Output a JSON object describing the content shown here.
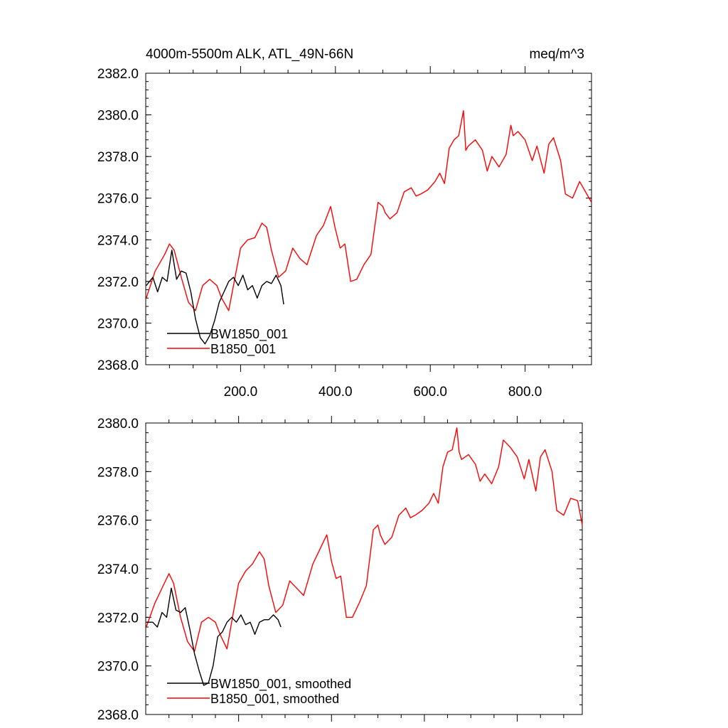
{
  "chart_data": [
    {
      "type": "line",
      "title": "4000m-5500m ALK, ATL_49N-66N",
      "units": "meq/m^3",
      "xlim": [
        0,
        940
      ],
      "ylim": [
        2368,
        2382
      ],
      "xticks": [
        200,
        400,
        600,
        800
      ],
      "xtick_labels": [
        "200.0",
        "400.0",
        "600.0",
        "800.0"
      ],
      "yticks": [
        2368,
        2370,
        2372,
        2374,
        2376,
        2378,
        2380,
        2382
      ],
      "ytick_labels": [
        "2368.0",
        "2370.0",
        "2372.0",
        "2374.0",
        "2376.0",
        "2378.0",
        "2380.0",
        "2382.0"
      ],
      "legend_position": "bottom-left",
      "series": [
        {
          "name": "BW1850_001",
          "color": "#000000",
          "x": [
            1,
            15,
            25,
            35,
            45,
            55,
            65,
            75,
            85,
            95,
            105,
            115,
            125,
            135,
            145,
            155,
            165,
            175,
            185,
            195,
            205,
            215,
            225,
            235,
            245,
            255,
            265,
            275,
            285,
            291
          ],
          "y": [
            2371.8,
            2372.2,
            2371.5,
            2372.2,
            2372.0,
            2373.5,
            2372.1,
            2372.5,
            2372.4,
            2371.5,
            2370.2,
            2369.3,
            2369.0,
            2369.4,
            2370.1,
            2371.0,
            2371.5,
            2372.0,
            2372.2,
            2371.8,
            2372.3,
            2371.6,
            2371.8,
            2371.2,
            2371.8,
            2372.0,
            2371.9,
            2372.3,
            2371.8,
            2370.9
          ]
        },
        {
          "name": "B1850_001",
          "color": "#ff0000",
          "x": [
            1,
            20,
            40,
            50,
            60,
            75,
            90,
            105,
            120,
            135,
            150,
            160,
            175,
            185,
            200,
            215,
            230,
            245,
            255,
            265,
            280,
            295,
            310,
            325,
            340,
            360,
            375,
            390,
            400,
            410,
            420,
            432,
            445,
            460,
            475,
            490,
            500,
            505,
            515,
            530,
            545,
            560,
            570,
            580,
            595,
            610,
            620,
            630,
            640,
            650,
            660,
            670,
            675,
            680,
            695,
            710,
            720,
            730,
            745,
            760,
            770,
            775,
            785,
            800,
            815,
            825,
            840,
            850,
            860,
            875,
            885,
            900,
            915,
            930,
            940
          ],
          "y": [
            2371.2,
            2372.5,
            2373.3,
            2373.8,
            2373.5,
            2372.2,
            2371.0,
            2370.6,
            2371.8,
            2372.1,
            2371.8,
            2371.2,
            2370.6,
            2371.8,
            2373.6,
            2374.0,
            2374.1,
            2374.8,
            2374.6,
            2373.5,
            2372.2,
            2372.5,
            2373.6,
            2373.1,
            2372.8,
            2374.2,
            2374.7,
            2375.6,
            2374.5,
            2373.6,
            2373.8,
            2372.0,
            2372.1,
            2372.8,
            2373.3,
            2375.8,
            2375.6,
            2375.3,
            2375.0,
            2375.3,
            2376.3,
            2376.5,
            2376.1,
            2376.2,
            2376.4,
            2376.8,
            2377.2,
            2376.7,
            2378.4,
            2378.8,
            2379.0,
            2380.2,
            2378.3,
            2378.5,
            2378.8,
            2378.3,
            2377.3,
            2378.0,
            2377.5,
            2378.1,
            2379.5,
            2379.0,
            2379.2,
            2378.8,
            2377.8,
            2378.5,
            2377.2,
            2378.6,
            2378.9,
            2377.8,
            2376.2,
            2376.0,
            2376.8,
            2376.2,
            2375.8
          ]
        }
      ]
    },
    {
      "type": "line",
      "xlim": [
        0,
        940
      ],
      "ylim": [
        2368,
        2380
      ],
      "yticks": [
        2368,
        2370,
        2372,
        2374,
        2376,
        2378,
        2380
      ],
      "ytick_labels": [
        "2368.0",
        "2370.0",
        "2372.0",
        "2374.0",
        "2376.0",
        "2378.0",
        "2380.0"
      ],
      "xticks": [
        200,
        400,
        600,
        800
      ],
      "legend_position": "bottom-left",
      "series": [
        {
          "name": "BW1850_001, smoothed",
          "color": "#000000",
          "x": [
            1,
            15,
            25,
            35,
            45,
            55,
            65,
            75,
            85,
            95,
            105,
            115,
            125,
            135,
            145,
            155,
            165,
            175,
            185,
            195,
            205,
            215,
            225,
            235,
            245,
            255,
            265,
            275,
            285,
            291
          ],
          "y": [
            2371.8,
            2371.8,
            2371.6,
            2372.2,
            2372.0,
            2373.2,
            2372.3,
            2372.2,
            2372.4,
            2371.5,
            2370.5,
            2369.8,
            2369.2,
            2369.3,
            2370.0,
            2371.2,
            2371.4,
            2371.8,
            2372.0,
            2371.8,
            2372.1,
            2371.7,
            2371.8,
            2371.3,
            2371.8,
            2371.9,
            2371.9,
            2372.1,
            2371.9,
            2371.6
          ]
        },
        {
          "name": "B1850_001, smoothed",
          "color": "#ff0000",
          "x": [
            1,
            20,
            40,
            50,
            60,
            75,
            90,
            105,
            120,
            135,
            150,
            160,
            175,
            185,
            200,
            215,
            230,
            245,
            255,
            265,
            280,
            295,
            310,
            325,
            340,
            360,
            375,
            390,
            400,
            410,
            420,
            432,
            445,
            460,
            475,
            490,
            500,
            505,
            515,
            530,
            545,
            560,
            570,
            580,
            595,
            610,
            620,
            630,
            640,
            650,
            660,
            670,
            675,
            680,
            695,
            710,
            720,
            730,
            745,
            760,
            770,
            775,
            785,
            800,
            815,
            825,
            840,
            850,
            860,
            875,
            885,
            900,
            915,
            930,
            940
          ],
          "y": [
            2371.6,
            2372.6,
            2373.4,
            2373.8,
            2373.4,
            2372.0,
            2371.0,
            2370.6,
            2371.8,
            2372.0,
            2371.8,
            2371.3,
            2370.7,
            2371.8,
            2373.4,
            2373.9,
            2374.2,
            2374.7,
            2374.4,
            2373.3,
            2372.2,
            2372.5,
            2373.5,
            2373.2,
            2372.9,
            2374.2,
            2374.8,
            2375.4,
            2374.3,
            2373.6,
            2373.7,
            2372.0,
            2372.0,
            2372.6,
            2373.3,
            2375.6,
            2375.8,
            2375.4,
            2375.0,
            2375.3,
            2376.2,
            2376.5,
            2376.1,
            2376.2,
            2376.4,
            2376.7,
            2377.1,
            2376.7,
            2378.2,
            2378.8,
            2378.9,
            2379.8,
            2378.8,
            2378.5,
            2378.7,
            2378.3,
            2377.6,
            2377.9,
            2377.5,
            2378.2,
            2379.3,
            2379.2,
            2379.0,
            2378.6,
            2377.7,
            2378.5,
            2377.2,
            2378.6,
            2378.9,
            2378.0,
            2376.4,
            2376.2,
            2376.9,
            2376.8,
            2375.8
          ]
        }
      ]
    }
  ]
}
